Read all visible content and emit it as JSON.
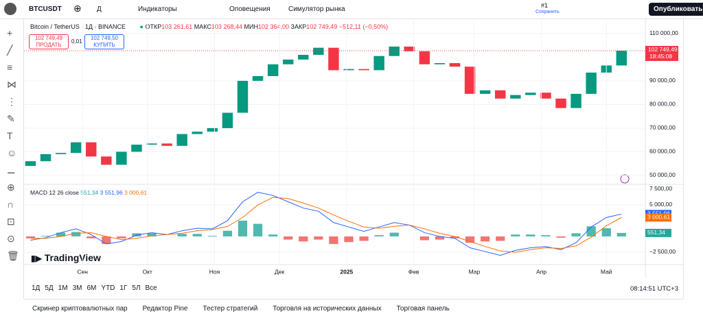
{
  "toolbar": {
    "symbol": "BTCUSDT",
    "interval": "Д",
    "indicators": "Индикаторы",
    "alerts": "Оповещения",
    "replay": "Симулятор рынка",
    "layout": "#1",
    "save": "Сохранить",
    "publish": "Опубликовать"
  },
  "legend": {
    "title": "Bitcoin / TetherUS · 1Д · BINANCE",
    "open_label": "ОТКР",
    "open": "103 261,61",
    "high_label": "МАКС",
    "high": "103 268,44",
    "low_label": "МИН",
    "low": "102 364,00",
    "close_label": "ЗАКР",
    "close": "102 749,49",
    "change": "−512,11 (−0,50%)",
    "sell_price": "102 749,49",
    "sell": "ПРОДАТЬ",
    "spread": "0,01",
    "buy_price": "102 749,50",
    "buy": "КУПИТЬ"
  },
  "macd_legend": {
    "name": "MACD 12 26 close",
    "hist": "551,34",
    "macd": "3 551,96",
    "signal": "3 000,61"
  },
  "countdown": "18:45:08",
  "brand": "TradingView",
  "ranges": [
    "1Д",
    "5Д",
    "1М",
    "3М",
    "6М",
    "YTD",
    "1Г",
    "5Л",
    "Все"
  ],
  "clock": "08:14:51 UTC+3",
  "bottom_tabs": [
    "Скринер криптовалютных пар",
    "Редактор Pine",
    "Тестер стратегий",
    "Торговля на исторических данных",
    "Торговая панель"
  ],
  "chart_data": [
    {
      "type": "candlestick",
      "up_color": "#089981",
      "down_color": "#f23645",
      "x": [
        3,
        10,
        17,
        24,
        31,
        38,
        45,
        52,
        59,
        66,
        73,
        80,
        87,
        94,
        101,
        108,
        115,
        122,
        129,
        136,
        143,
        150,
        157,
        164,
        171,
        178,
        185,
        192,
        199,
        206,
        213,
        220,
        227,
        234,
        241,
        248,
        255,
        262,
        269,
        276
      ],
      "open": [
        54000,
        56000,
        59000,
        59500,
        64000,
        58000,
        54500,
        60000,
        63000,
        63500,
        62500,
        67500,
        68500,
        70000,
        76500,
        90000,
        92000,
        97000,
        99000,
        101000,
        104000,
        94500,
        95000,
        94500,
        100500,
        104500,
        102500,
        97000,
        97500,
        96000,
        84500,
        86000,
        82500,
        84000,
        85000,
        82500,
        78500,
        84500,
        93500,
        96500
      ],
      "close": [
        56000,
        59000,
        59500,
        64000,
        58000,
        54500,
        60000,
        63000,
        63500,
        62500,
        67500,
        68500,
        70000,
        76500,
        90000,
        92000,
        97000,
        99000,
        101000,
        104000,
        94500,
        95000,
        94500,
        100500,
        104500,
        102500,
        97000,
        97500,
        96000,
        84500,
        86000,
        82500,
        84000,
        85000,
        82500,
        78500,
        84500,
        93500,
        96500,
        102749.49
      ],
      "xlim": [
        0,
        287
      ],
      "ylim": [
        46500,
        115500
      ],
      "yticks": [
        {
          "value": 50000,
          "label": "50 000,00"
        },
        {
          "value": 60000,
          "label": "60 000,00"
        },
        {
          "value": 70000,
          "label": "70 000,00"
        },
        {
          "value": 80000,
          "label": "80 000,00"
        },
        {
          "value": 90000,
          "label": "90 000,00"
        },
        {
          "value": 110000,
          "label": "110 000,00"
        }
      ],
      "grid": true
    },
    {
      "type": "macd",
      "x": [
        3,
        10,
        17,
        24,
        31,
        38,
        45,
        52,
        59,
        66,
        73,
        80,
        87,
        94,
        101,
        108,
        115,
        122,
        129,
        136,
        143,
        150,
        157,
        164,
        171,
        178,
        185,
        192,
        199,
        206,
        213,
        220,
        227,
        234,
        241,
        248,
        255,
        262,
        269,
        276
      ],
      "series": [
        {
          "color": "#2962ff",
          "values": [
            -600,
            -200,
            600,
            1200,
            300,
            -1200,
            -800,
            200,
            600,
            300,
            900,
            1300,
            1200,
            2500,
            5500,
            7000,
            6500,
            5500,
            4500,
            4000,
            2200,
            1500,
            800,
            1500,
            2200,
            1800,
            600,
            0,
            -300,
            -1800,
            -2400,
            -3000,
            -2200,
            -1800,
            -1600,
            -2100,
            -1000,
            1500,
            3000,
            3551.96
          ]
        },
        {
          "color": "#ff6d00",
          "values": [
            -300,
            -300,
            0,
            500,
            600,
            0,
            -500,
            -300,
            100,
            300,
            500,
            900,
            1100,
            1600,
            3000,
            5000,
            6200,
            6000,
            5300,
            4500,
            3400,
            2400,
            1500,
            1300,
            1600,
            1800,
            1200,
            500,
            0,
            -800,
            -1600,
            -2300,
            -2500,
            -2100,
            -1800,
            -1900,
            -1500,
            -100,
            1700,
            3000.61
          ]
        },
        {
          "color": "#26a69a",
          "negative_color": "#ef5350",
          "values": [
            -300,
            100,
            600,
            700,
            -300,
            -1200,
            -300,
            500,
            500,
            0,
            400,
            400,
            100,
            900,
            2500,
            2000,
            300,
            -500,
            -800,
            -500,
            -1200,
            -900,
            -700,
            200,
            600,
            0,
            -600,
            -500,
            -300,
            -1000,
            -800,
            -700,
            300,
            300,
            200,
            -200,
            500,
            1600,
            1300,
            551.34
          ]
        }
      ],
      "xlim": [
        0,
        287
      ],
      "ylim": [
        -4350,
        8150
      ],
      "yticks": [
        {
          "value": -2500,
          "label": "−2 500,00"
        },
        {
          "value": 5000,
          "label": "5 000,00"
        },
        {
          "value": 7500,
          "label": "7 500,00"
        }
      ],
      "xticks": [
        {
          "value": 27,
          "label": "Сен"
        },
        {
          "value": 57,
          "label": "Окт"
        },
        {
          "value": 88,
          "label": "Ноя"
        },
        {
          "value": 118,
          "label": "Дек"
        },
        {
          "value": 149,
          "label": "2025"
        },
        {
          "value": 180,
          "label": "Фев"
        },
        {
          "value": 208,
          "label": "Мар"
        },
        {
          "value": 239,
          "label": "Апр"
        },
        {
          "value": 269,
          "label": "Май"
        }
      ],
      "grid": true
    }
  ]
}
